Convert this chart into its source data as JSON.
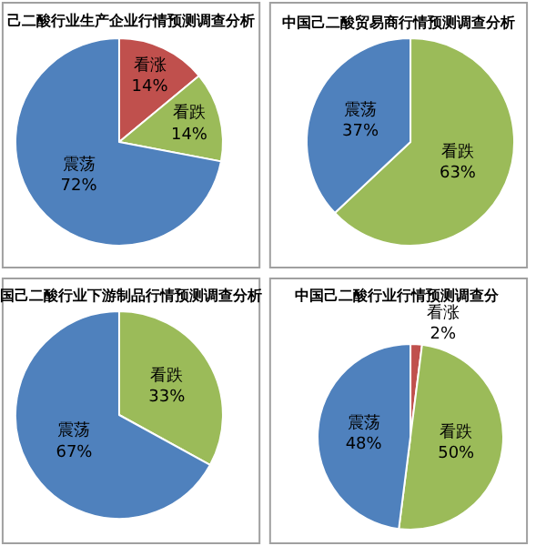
{
  "chart_data": [
    {
      "type": "pie",
      "title": "己二酸行业生产企业行情预测调查分析",
      "categories": [
        "看涨",
        "看跌",
        "震荡"
      ],
      "values": [
        14,
        14,
        72
      ],
      "value_labels": [
        "14%",
        "14%",
        "72%"
      ],
      "colors": [
        "#c0504d",
        "#9bbb59",
        "#4f81bd"
      ],
      "legend": false
    },
    {
      "type": "pie",
      "title": "中国己二酸贸易商行情预测调查分析",
      "categories": [
        "看跌",
        "震荡"
      ],
      "values": [
        63,
        37
      ],
      "value_labels": [
        "63%",
        "37%"
      ],
      "colors": [
        "#9bbb59",
        "#4f81bd"
      ],
      "legend": false
    },
    {
      "type": "pie",
      "title": "国己二酸行业下游制品行情预测调查分析",
      "categories": [
        "看跌",
        "震荡"
      ],
      "values": [
        33,
        67
      ],
      "value_labels": [
        "33%",
        "67%"
      ],
      "colors": [
        "#9bbb59",
        "#4f81bd"
      ],
      "legend": false
    },
    {
      "type": "pie",
      "title": "中国己二酸行业行情预测调查分",
      "categories": [
        "看涨",
        "看跌",
        "震荡"
      ],
      "values": [
        2,
        50,
        48
      ],
      "value_labels": [
        "2%",
        "50%",
        "48%"
      ],
      "colors": [
        "#c0504d",
        "#9bbb59",
        "#4f81bd"
      ],
      "legend": false
    }
  ]
}
